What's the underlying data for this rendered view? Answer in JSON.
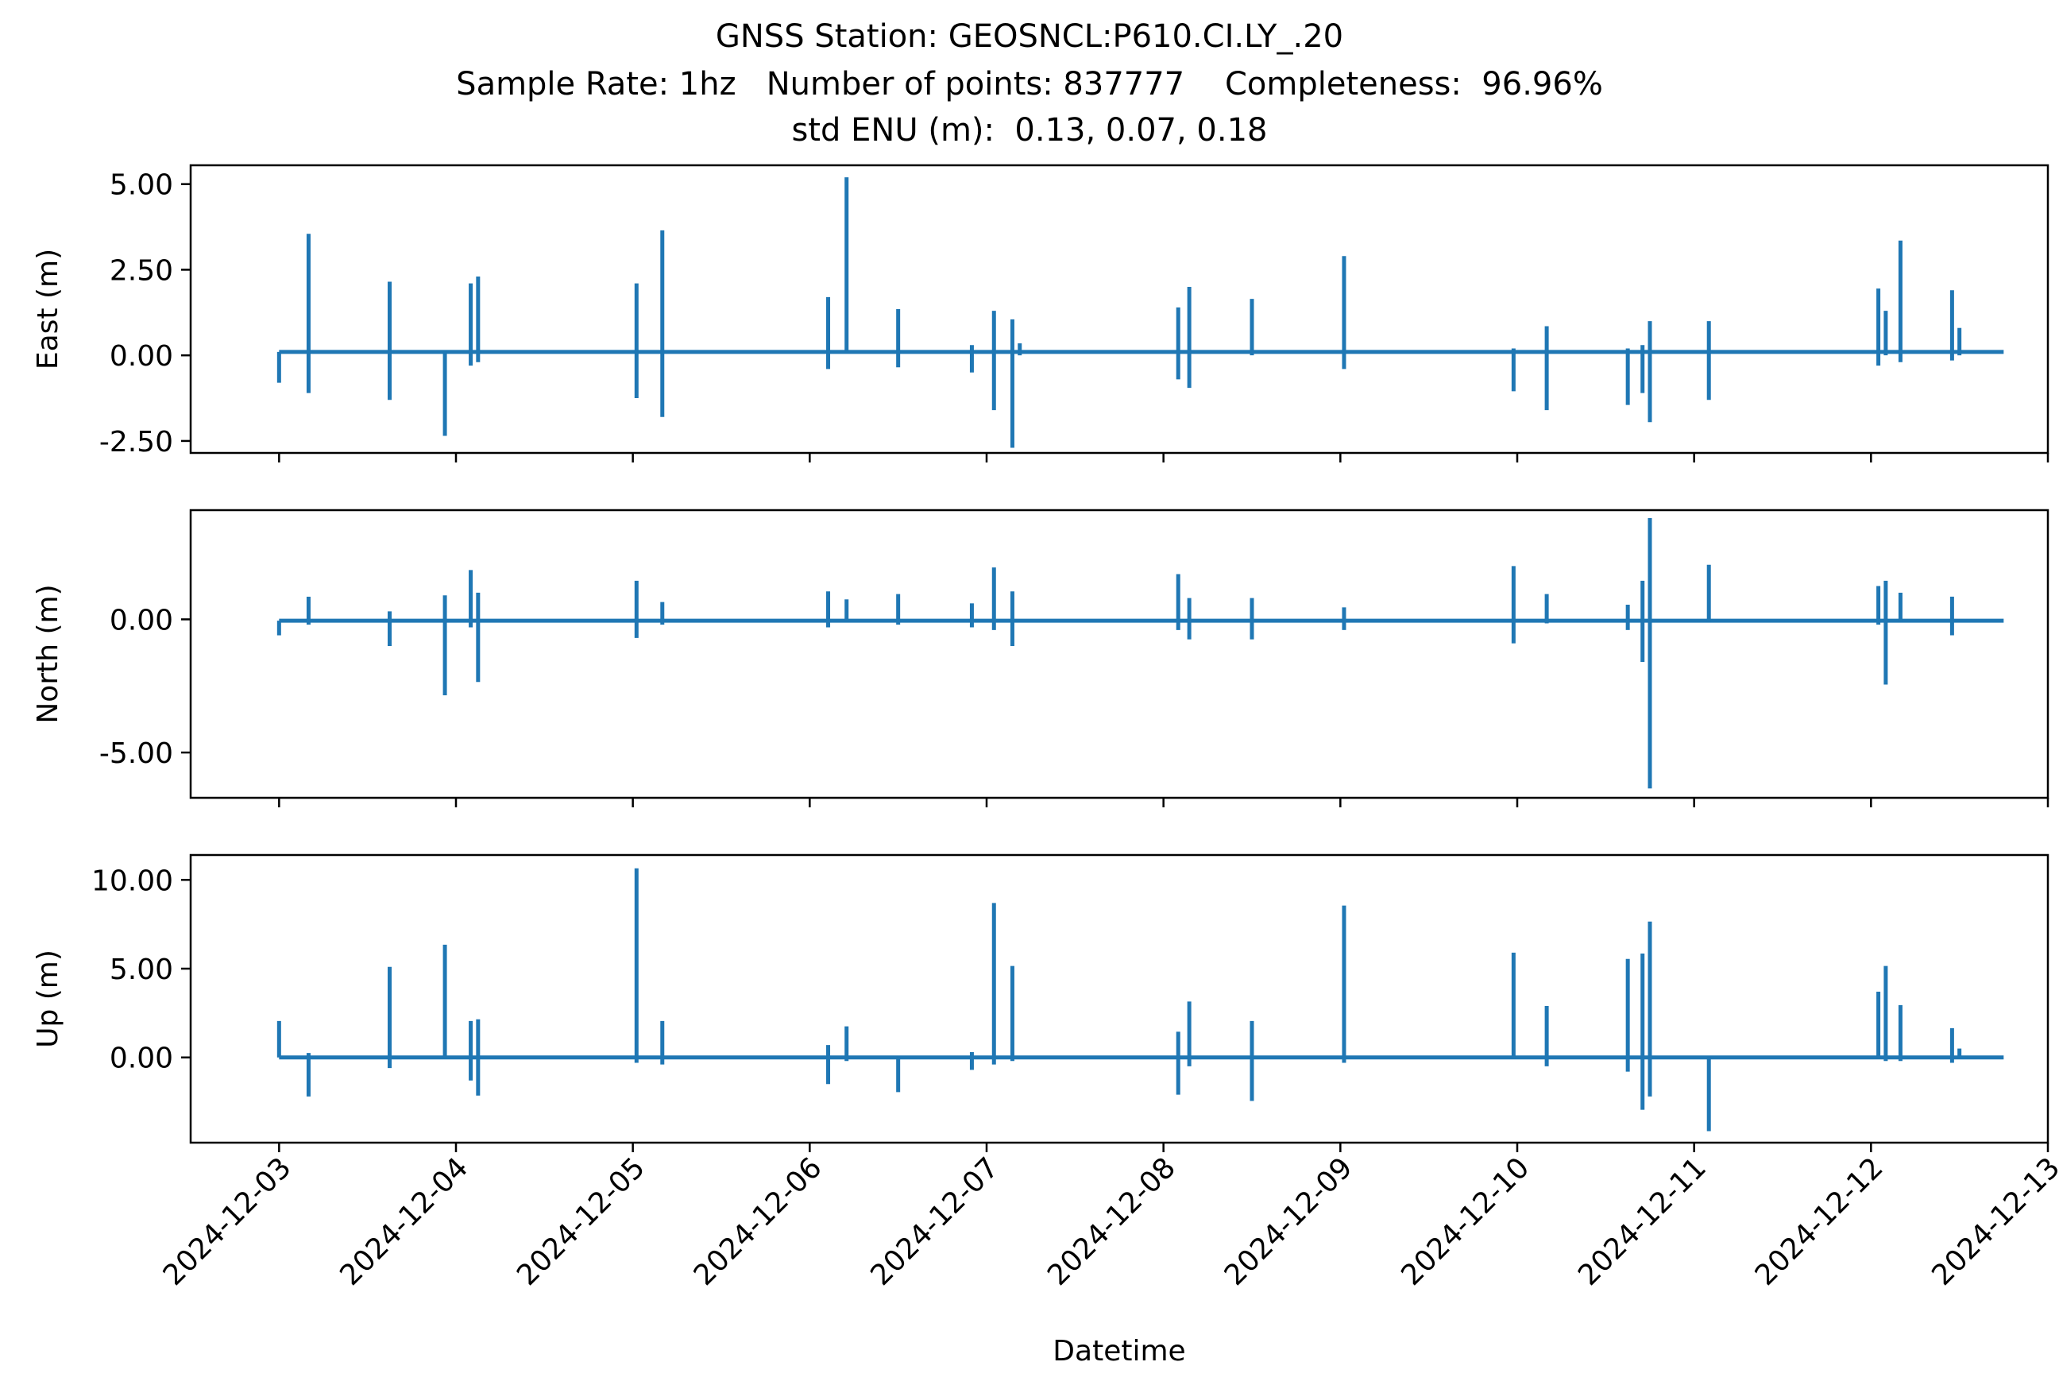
{
  "title_lines": [
    "GNSS Station: GEOSNCL:P610.CI.LY_.20",
    "Sample Rate: 1hz   Number of points: 837777    Completeness:  96.96%",
    "std ENU (m):  0.13, 0.07, 0.18"
  ],
  "colors": {
    "series": "#1f77b4",
    "axes": "#000000",
    "background": "#ffffff"
  },
  "chart_data": [
    {
      "type": "line",
      "ylabel": "East (m)",
      "xlabel": "",
      "xlim": [
        "2024-12-02 12:00",
        "2024-12-13 00:00"
      ],
      "ylim": [
        -2.85,
        5.55
      ],
      "yticks": [
        5.0,
        2.5,
        0.0,
        -2.5
      ],
      "ytick_labels": [
        "5.00",
        "2.50",
        "0.00",
        "-2.50"
      ],
      "xtick_labels_shown": false,
      "baseline": 0.1,
      "series": [
        {
          "spikes": [
            [
              "2024-12-03 00:00",
              0.1,
              -0.8
            ],
            [
              "2024-12-03 04:00",
              3.55,
              -1.1
            ],
            [
              "2024-12-03 15:00",
              2.15,
              -1.3
            ],
            [
              "2024-12-03 22:30",
              0.1,
              -2.35
            ],
            [
              "2024-12-04 02:00",
              2.1,
              -0.3
            ],
            [
              "2024-12-04 03:00",
              2.3,
              -0.2
            ],
            [
              "2024-12-05 00:30",
              2.1,
              -1.25
            ],
            [
              "2024-12-05 04:00",
              3.65,
              -1.8
            ],
            [
              "2024-12-06 02:30",
              1.7,
              -0.4
            ],
            [
              "2024-12-06 05:00",
              5.2,
              0.1
            ],
            [
              "2024-12-06 12:00",
              1.35,
              -0.35
            ],
            [
              "2024-12-06 22:00",
              0.3,
              -0.5
            ],
            [
              "2024-12-07 01:00",
              1.3,
              -1.6
            ],
            [
              "2024-12-07 03:30",
              1.05,
              -2.7
            ],
            [
              "2024-12-07 04:30",
              0.35,
              0.0
            ],
            [
              "2024-12-08 02:00",
              1.4,
              -0.7
            ],
            [
              "2024-12-08 03:30",
              2.0,
              -0.95
            ],
            [
              "2024-12-08 12:00",
              1.65,
              0.0
            ],
            [
              "2024-12-09 00:30",
              2.9,
              -0.4
            ],
            [
              "2024-12-09 23:30",
              0.2,
              -1.05
            ],
            [
              "2024-12-10 04:00",
              0.85,
              -1.6
            ],
            [
              "2024-12-10 15:00",
              0.2,
              -1.45
            ],
            [
              "2024-12-10 17:00",
              0.3,
              -1.1
            ],
            [
              "2024-12-10 18:00",
              1.0,
              -1.95
            ],
            [
              "2024-12-11 02:00",
              1.0,
              -1.3
            ],
            [
              "2024-12-12 01:00",
              1.95,
              -0.3
            ],
            [
              "2024-12-12 02:00",
              1.3,
              0.0
            ],
            [
              "2024-12-12 04:00",
              3.35,
              -0.2
            ],
            [
              "2024-12-12 11:00",
              1.9,
              -0.15
            ],
            [
              "2024-12-12 12:00",
              0.8,
              0.0
            ]
          ]
        }
      ]
    },
    {
      "type": "line",
      "ylabel": "North (m)",
      "xlabel": "",
      "xlim": [
        "2024-12-02 12:00",
        "2024-12-13 00:00"
      ],
      "ylim": [
        -6.7,
        4.1
      ],
      "yticks": [
        0.0,
        -5.0
      ],
      "ytick_labels": [
        "0.00",
        "-5.00"
      ],
      "xtick_labels_shown": false,
      "baseline": -0.05,
      "series": [
        {
          "spikes": [
            [
              "2024-12-03 00:00",
              -0.05,
              -0.6
            ],
            [
              "2024-12-03 04:00",
              0.85,
              -0.2
            ],
            [
              "2024-12-03 15:00",
              0.3,
              -1.0
            ],
            [
              "2024-12-03 22:30",
              0.9,
              -2.85
            ],
            [
              "2024-12-04 02:00",
              1.85,
              -0.3
            ],
            [
              "2024-12-04 03:00",
              1.0,
              -2.35
            ],
            [
              "2024-12-05 00:30",
              1.45,
              -0.7
            ],
            [
              "2024-12-05 04:00",
              0.65,
              -0.2
            ],
            [
              "2024-12-06 02:30",
              1.05,
              -0.3
            ],
            [
              "2024-12-06 05:00",
              0.75,
              -0.1
            ],
            [
              "2024-12-06 12:00",
              0.95,
              -0.2
            ],
            [
              "2024-12-06 22:00",
              0.6,
              -0.3
            ],
            [
              "2024-12-07 01:00",
              1.95,
              -0.4
            ],
            [
              "2024-12-07 03:30",
              1.05,
              -1.0
            ],
            [
              "2024-12-08 02:00",
              1.7,
              -0.4
            ],
            [
              "2024-12-08 03:30",
              0.8,
              -0.75
            ],
            [
              "2024-12-08 12:00",
              0.8,
              -0.75
            ],
            [
              "2024-12-09 00:30",
              0.45,
              -0.4
            ],
            [
              "2024-12-09 23:30",
              2.0,
              -0.9
            ],
            [
              "2024-12-10 04:00",
              0.95,
              -0.15
            ],
            [
              "2024-12-10 15:00",
              0.55,
              -0.4
            ],
            [
              "2024-12-10 17:00",
              1.45,
              -1.6
            ],
            [
              "2024-12-10 18:00",
              3.8,
              -6.35
            ],
            [
              "2024-12-11 02:00",
              2.05,
              -0.1
            ],
            [
              "2024-12-12 01:00",
              1.25,
              -0.2
            ],
            [
              "2024-12-12 02:00",
              1.45,
              -2.45
            ],
            [
              "2024-12-12 04:00",
              1.0,
              -0.1
            ],
            [
              "2024-12-12 11:00",
              0.85,
              -0.6
            ]
          ]
        }
      ]
    },
    {
      "type": "line",
      "ylabel": "Up (m)",
      "xlabel": "Datetime",
      "xlim": [
        "2024-12-02 12:00",
        "2024-12-13 00:00"
      ],
      "ylim": [
        -4.8,
        11.4
      ],
      "yticks": [
        10.0,
        5.0,
        0.0
      ],
      "ytick_labels": [
        "10.00",
        "5.00",
        "0.00"
      ],
      "xticks": [
        "2024-12-03",
        "2024-12-04",
        "2024-12-05",
        "2024-12-06",
        "2024-12-07",
        "2024-12-08",
        "2024-12-09",
        "2024-12-10",
        "2024-12-11",
        "2024-12-12",
        "2024-12-13"
      ],
      "baseline": 0.0,
      "series": [
        {
          "spikes": [
            [
              "2024-12-03 00:00",
              2.05,
              0.0
            ],
            [
              "2024-12-03 04:00",
              0.25,
              -2.2
            ],
            [
              "2024-12-03 15:00",
              5.1,
              -0.6
            ],
            [
              "2024-12-03 22:30",
              6.35,
              0.0
            ],
            [
              "2024-12-04 02:00",
              2.05,
              -1.3
            ],
            [
              "2024-12-04 03:00",
              2.15,
              -2.15
            ],
            [
              "2024-12-05 00:30",
              10.65,
              -0.3
            ],
            [
              "2024-12-05 04:00",
              2.05,
              -0.4
            ],
            [
              "2024-12-06 02:30",
              0.7,
              -1.5
            ],
            [
              "2024-12-06 05:00",
              1.75,
              -0.2
            ],
            [
              "2024-12-06 12:00",
              0.0,
              -1.95
            ],
            [
              "2024-12-06 22:00",
              0.3,
              -0.7
            ],
            [
              "2024-12-07 01:00",
              8.7,
              -0.4
            ],
            [
              "2024-12-07 03:30",
              5.15,
              -0.2
            ],
            [
              "2024-12-08 02:00",
              1.45,
              -2.1
            ],
            [
              "2024-12-08 03:30",
              3.15,
              -0.5
            ],
            [
              "2024-12-08 12:00",
              2.05,
              -2.45
            ],
            [
              "2024-12-09 00:30",
              8.55,
              -0.3
            ],
            [
              "2024-12-09 23:30",
              5.9,
              -0.1
            ],
            [
              "2024-12-10 04:00",
              2.9,
              -0.5
            ],
            [
              "2024-12-10 15:00",
              5.55,
              -0.8
            ],
            [
              "2024-12-10 17:00",
              5.85,
              -2.95
            ],
            [
              "2024-12-10 18:00",
              7.65,
              -2.2
            ],
            [
              "2024-12-11 02:00",
              0.0,
              -4.15
            ],
            [
              "2024-12-12 01:00",
              3.7,
              0.0
            ],
            [
              "2024-12-12 02:00",
              5.15,
              -0.2
            ],
            [
              "2024-12-12 04:00",
              2.95,
              -0.2
            ],
            [
              "2024-12-12 11:00",
              1.65,
              -0.3
            ],
            [
              "2024-12-12 12:00",
              0.5,
              0.0
            ]
          ]
        }
      ]
    }
  ]
}
